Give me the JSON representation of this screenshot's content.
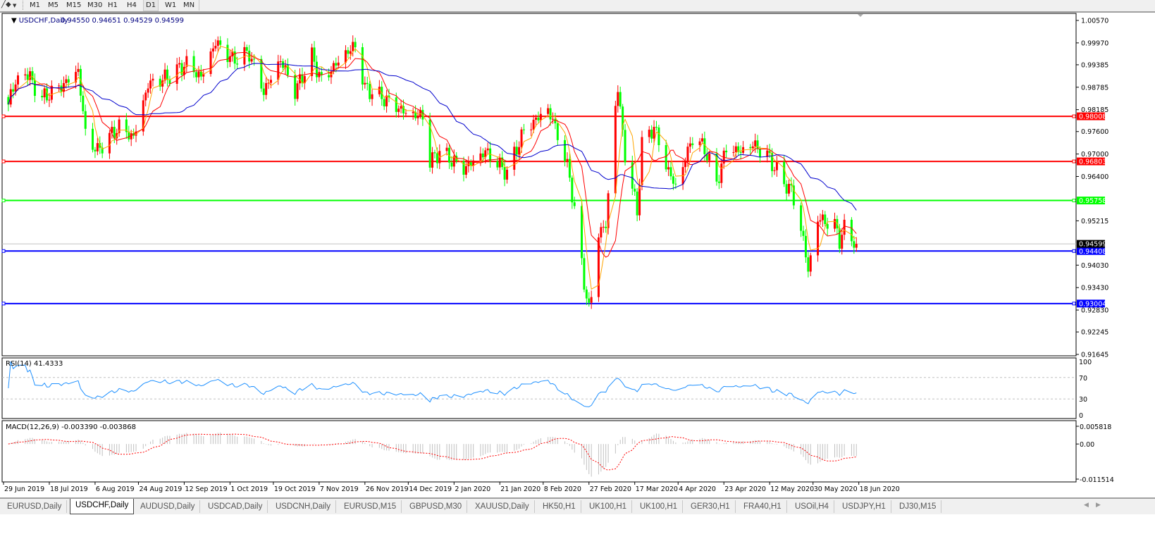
{
  "toolbar": {
    "timeframes": [
      "M1",
      "M5",
      "M15",
      "M30",
      "H1",
      "H4",
      "D1",
      "W1",
      "MN"
    ],
    "active_timeframe": "D1",
    "tool_icon": "line-tools-icon",
    "dropdown_icon": "dropdown-arrow-icon"
  },
  "chart": {
    "title": "USDCHF,Daily",
    "ohlc": "0.94550 0.94651 0.94529 0.94599",
    "bid_label": "0.94599",
    "bid_price": 0.94599,
    "colors": {
      "up_candle": "#ff0000",
      "down_candle": "#00ff00",
      "ma_fast": "#ffa500",
      "ma_mid": "#ff0000",
      "ma_slow": "#0000cd",
      "rsi": "#1e90ff",
      "macd_hist": "#c0c0c0",
      "macd_signal": "#ff0000"
    },
    "price_axis": [
      "1.00570",
      "0.99970",
      "0.99385",
      "0.98785",
      "0.98185",
      "0.97600",
      "0.97000",
      "0.96400",
      "0.95215",
      "0.94030",
      "0.93430",
      "0.92830",
      "0.92245",
      "0.91645"
    ],
    "price_range": [
      0.91645,
      1.0057
    ],
    "horizontal_lines": [
      {
        "price": 0.98008,
        "label": "0.98008",
        "color": "#ff0000"
      },
      {
        "price": 0.96803,
        "label": "0.96803",
        "color": "#ff0000"
      },
      {
        "price": 0.95758,
        "label": "0.95758",
        "color": "#00ff00"
      },
      {
        "price": 0.94408,
        "label": "0.94408",
        "color": "#0000ff"
      },
      {
        "price": 0.93004,
        "label": "0.93004",
        "color": "#0000ff"
      }
    ],
    "date_axis": [
      {
        "date": "2019-06-29",
        "label": "29 Jun 2019"
      },
      {
        "date": "2019-07-18",
        "label": "18 Jul 2019"
      },
      {
        "date": "2019-08-06",
        "label": "6 Aug 2019"
      },
      {
        "date": "2019-08-24",
        "label": "24 Aug 2019"
      },
      {
        "date": "2019-09-12",
        "label": "12 Sep 2019"
      },
      {
        "date": "2019-10-01",
        "label": "1 Oct 2019"
      },
      {
        "date": "2019-10-19",
        "label": "19 Oct 2019"
      },
      {
        "date": "2019-11-07",
        "label": "7 Nov 2019"
      },
      {
        "date": "2019-11-26",
        "label": "26 Nov 2019"
      },
      {
        "date": "2019-12-14",
        "label": "14 Dec 2019"
      },
      {
        "date": "2020-01-02",
        "label": "2 Jan 2020"
      },
      {
        "date": "2020-01-21",
        "label": "21 Jan 2020"
      },
      {
        "date": "2020-02-08",
        "label": "8 Feb 2020"
      },
      {
        "date": "2020-02-27",
        "label": "27 Feb 2020"
      },
      {
        "date": "2020-03-17",
        "label": "17 Mar 2020"
      },
      {
        "date": "2020-04-04",
        "label": "4 Apr 2020"
      },
      {
        "date": "2020-04-23",
        "label": "23 Apr 2020"
      },
      {
        "date": "2020-05-12",
        "label": "12 May 2020"
      },
      {
        "date": "2020-05-30",
        "label": "30 May 2020"
      },
      {
        "date": "2020-06-18",
        "label": "18 Jun 2020"
      }
    ]
  },
  "rsi": {
    "label": "RSI(14) 41.4333",
    "axis": [
      "100",
      "70",
      "30",
      "0"
    ],
    "levels": [
      70,
      30
    ]
  },
  "macd": {
    "label": "MACD(12,26,9) -0.003390 -0.003868",
    "axis": [
      "0.005818",
      "0.00",
      "-0.011514"
    ],
    "range": [
      -0.011514,
      0.005818
    ]
  },
  "chart_data": {
    "type": "candlestick",
    "title": "USDCHF,Daily",
    "approx_close_path": [
      [
        "2019-06-29",
        0.9763
      ],
      [
        "2019-07-02",
        0.9867
      ],
      [
        "2019-07-08",
        0.9923
      ],
      [
        "2019-07-15",
        0.9848
      ],
      [
        "2019-07-24",
        0.9886
      ],
      [
        "2019-07-30",
        0.9923
      ],
      [
        "2019-08-02",
        0.9754
      ],
      [
        "2019-08-07",
        0.9707
      ],
      [
        "2019-08-09",
        0.9726
      ],
      [
        "2019-08-16",
        0.9773
      ],
      [
        "2019-08-22",
        0.9744
      ],
      [
        "2019-08-28",
        0.9886
      ],
      [
        "2019-09-05",
        0.9905
      ],
      [
        "2019-09-13",
        0.9942
      ],
      [
        "2019-09-19",
        0.9905
      ],
      [
        "2019-09-25",
        0.9999
      ],
      [
        "2019-10-02",
        0.9952
      ],
      [
        "2019-10-09",
        0.997
      ],
      [
        "2019-10-15",
        0.9867
      ],
      [
        "2019-10-22",
        0.9952
      ],
      [
        "2019-10-28",
        0.9867
      ],
      [
        "2019-11-04",
        0.9961
      ],
      [
        "2019-11-08",
        0.9895
      ],
      [
        "2019-11-18",
        0.997
      ],
      [
        "2019-11-22",
        0.9989
      ],
      [
        "2019-11-26",
        0.9876
      ],
      [
        "2019-12-04",
        0.9848
      ],
      [
        "2019-12-13",
        0.981
      ],
      [
        "2019-12-20",
        0.9801
      ],
      [
        "2019-12-23",
        0.9679
      ],
      [
        "2019-12-27",
        0.9707
      ],
      [
        "2020-01-06",
        0.966
      ],
      [
        "2020-01-15",
        0.9707
      ],
      [
        "2020-01-24",
        0.965
      ],
      [
        "2020-01-31",
        0.9763
      ],
      [
        "2020-02-10",
        0.982
      ],
      [
        "2020-02-14",
        0.9754
      ],
      [
        "2020-02-19",
        0.9641
      ],
      [
        "2020-02-25",
        0.9358
      ],
      [
        "2020-02-27",
        0.9283
      ],
      [
        "2020-02-28",
        0.9321
      ],
      [
        "2020-03-02",
        0.949
      ],
      [
        "2020-03-05",
        0.9509
      ],
      [
        "2020-03-09",
        0.9829
      ],
      [
        "2020-03-10",
        0.9876
      ],
      [
        "2020-03-13",
        0.9697
      ],
      [
        "2020-03-18",
        0.9547
      ],
      [
        "2020-03-20",
        0.9726
      ],
      [
        "2020-03-25",
        0.9773
      ],
      [
        "2020-03-30",
        0.9669
      ],
      [
        "2020-04-03",
        0.9612
      ],
      [
        "2020-04-10",
        0.9744
      ],
      [
        "2020-04-15",
        0.9716
      ],
      [
        "2020-04-20",
        0.9622
      ],
      [
        "2020-04-24",
        0.9716
      ],
      [
        "2020-04-30",
        0.9707
      ],
      [
        "2020-05-05",
        0.9726
      ],
      [
        "2020-05-11",
        0.9697
      ],
      [
        "2020-05-18",
        0.9622
      ],
      [
        "2020-05-21",
        0.9603
      ],
      [
        "2020-05-26",
        0.9471
      ],
      [
        "2020-05-28",
        0.9387
      ],
      [
        "2020-06-01",
        0.9528
      ],
      [
        "2020-06-08",
        0.9509
      ],
      [
        "2020-06-10",
        0.9471
      ],
      [
        "2020-06-12",
        0.95
      ],
      [
        "2020-06-17",
        0.94599
      ]
    ],
    "yrange": [
      0.91645,
      1.0057
    ]
  },
  "tabs": [
    {
      "label": "EURUSD,Daily"
    },
    {
      "label": "USDCHF,Daily",
      "active": true
    },
    {
      "label": "AUDUSD,Daily"
    },
    {
      "label": "USDCAD,Daily"
    },
    {
      "label": "USDCNH,Daily"
    },
    {
      "label": "EURUSD,M15"
    },
    {
      "label": "GBPUSD,M30"
    },
    {
      "label": "XAUUSD,Daily"
    },
    {
      "label": "HK50,H1"
    },
    {
      "label": "UK100,H1"
    },
    {
      "label": "UK100,H1"
    },
    {
      "label": "GER30,H1"
    },
    {
      "label": "FRA40,H1"
    },
    {
      "label": "USOil,H4"
    },
    {
      "label": "USDJPY,H1"
    },
    {
      "label": "DJ30,M15"
    }
  ]
}
